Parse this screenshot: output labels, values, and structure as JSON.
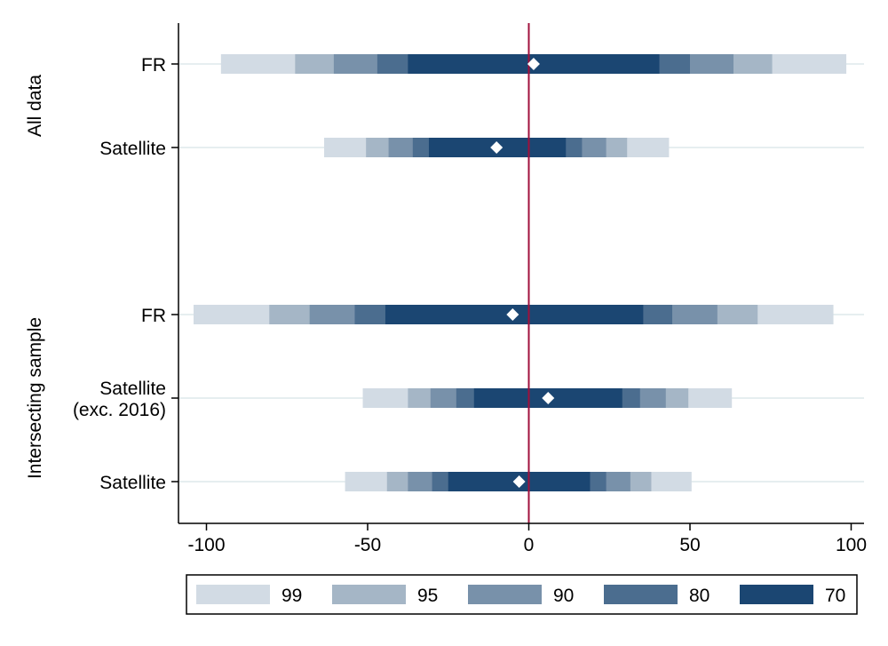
{
  "chart_data": {
    "type": "coefficient-interval-plot",
    "xlim": [
      -108,
      104
    ],
    "xticks": [
      "-100",
      "-50",
      "0",
      "50",
      "100"
    ],
    "xtick_values": [
      -100,
      -50,
      0,
      50,
      100
    ],
    "reference_line": {
      "x": 0,
      "color": "#a0103c"
    },
    "grid": true,
    "legend_position": "bottom",
    "legend": [
      {
        "label": "99",
        "level": 99,
        "color": "#d2dbe4"
      },
      {
        "label": "95",
        "level": 95,
        "color": "#a5b6c6"
      },
      {
        "label": "90",
        "level": 90,
        "color": "#7891aa"
      },
      {
        "label": "80",
        "level": 80,
        "color": "#4b6d8f"
      },
      {
        "label": "70",
        "level": 70,
        "color": "#1b4672"
      }
    ],
    "groups": [
      {
        "label": "All data",
        "rows": [
          0,
          1
        ]
      },
      {
        "label": "Intersecting sample",
        "rows": [
          2,
          3,
          4
        ]
      }
    ],
    "rows": [
      {
        "label_lines": [
          "FR"
        ],
        "estimate": 1.5,
        "intervals": {
          "99": [
            -95.5,
            98.5
          ],
          "95": [
            -72.5,
            75.5
          ],
          "90": [
            -60.5,
            63.5
          ],
          "80": [
            -47,
            50
          ],
          "70": [
            -37.5,
            40.5
          ]
        }
      },
      {
        "label_lines": [
          "Satellite"
        ],
        "estimate": -10,
        "intervals": {
          "99": [
            -63.5,
            43.5
          ],
          "95": [
            -50.5,
            30.5
          ],
          "90": [
            -43.5,
            24
          ],
          "80": [
            -36,
            16.5
          ],
          "70": [
            -31,
            11.5
          ]
        }
      },
      {
        "label_lines": [
          "FR"
        ],
        "estimate": -5,
        "intervals": {
          "99": [
            -104,
            94.5
          ],
          "95": [
            -80.5,
            71
          ],
          "90": [
            -68,
            58.5
          ],
          "80": [
            -54,
            44.5
          ],
          "70": [
            -44.5,
            35.5
          ]
        }
      },
      {
        "label_lines": [
          "Satellite",
          "(exc. 2016)"
        ],
        "estimate": 6,
        "intervals": {
          "99": [
            -51.5,
            63
          ],
          "95": [
            -37.5,
            49.5
          ],
          "90": [
            -30.5,
            42.5
          ],
          "80": [
            -22.5,
            34.5
          ],
          "70": [
            -17,
            29
          ]
        }
      },
      {
        "label_lines": [
          "Satellite"
        ],
        "estimate": -3,
        "intervals": {
          "99": [
            -57,
            50.5
          ],
          "95": [
            -44,
            38
          ],
          "90": [
            -37.5,
            31.5
          ],
          "80": [
            -30,
            24
          ],
          "70": [
            -25,
            19
          ]
        }
      }
    ]
  }
}
